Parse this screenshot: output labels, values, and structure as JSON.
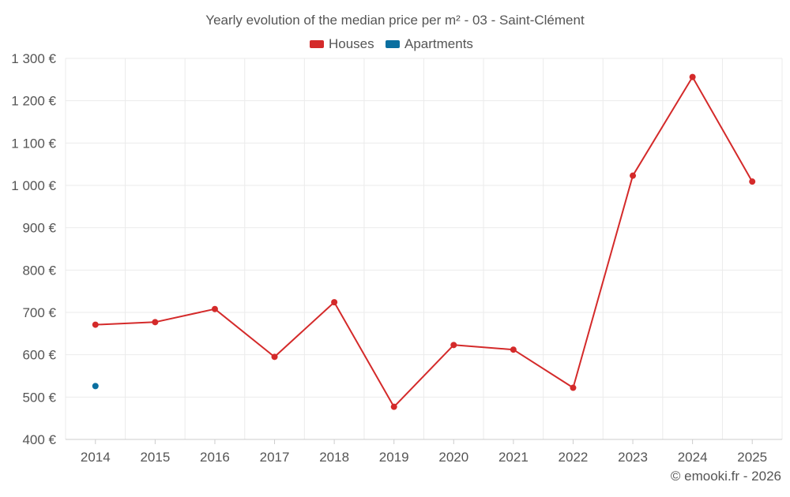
{
  "chart_data": {
    "type": "line",
    "title": "Yearly evolution of the median price per m² - 03 - Saint-Clément",
    "categories": [
      "2014",
      "2015",
      "2016",
      "2017",
      "2018",
      "2019",
      "2020",
      "2021",
      "2022",
      "2023",
      "2024",
      "2025"
    ],
    "series": [
      {
        "name": "Houses",
        "color": "#d42a2a",
        "values": [
          671,
          677,
          708,
          595,
          724,
          477,
          623,
          612,
          522,
          1023,
          1256,
          1009
        ]
      },
      {
        "name": "Apartments",
        "color": "#0a6fa0",
        "values": [
          526,
          null,
          null,
          null,
          null,
          null,
          null,
          null,
          null,
          null,
          null,
          null
        ]
      }
    ],
    "yticks": [
      400,
      500,
      600,
      700,
      800,
      900,
      1000,
      1100,
      1200,
      1300
    ],
    "ytick_labels": [
      "400 €",
      "500 €",
      "600 €",
      "700 €",
      "800 €",
      "900 €",
      "1 000 €",
      "1 100 €",
      "1 200 €",
      "1 300 €"
    ],
    "ylim": [
      400,
      1300
    ],
    "xlabel": "",
    "ylabel": "",
    "legend_position": "top-center",
    "grid": true
  },
  "credit": "© emooki.fr - 2026"
}
